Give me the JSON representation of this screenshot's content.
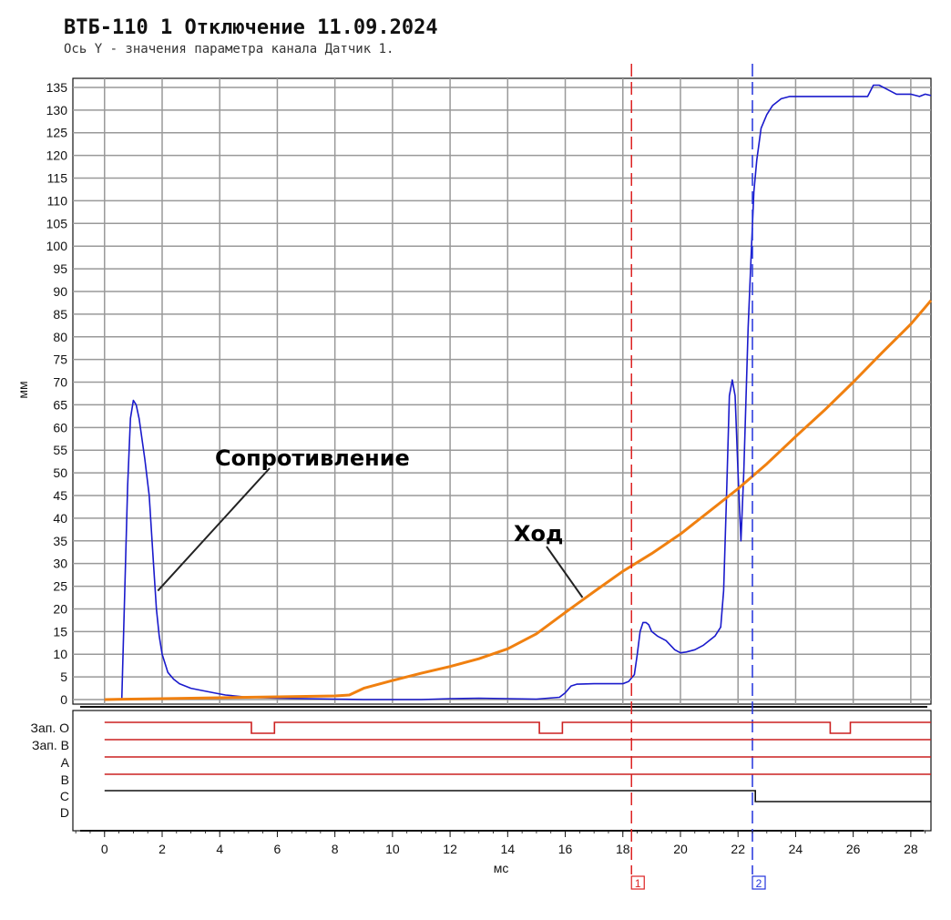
{
  "chart_data": {
    "type": "line",
    "title": "ВТБ-110 1 Отключение 11.09.2024",
    "subtitle": "Ось Y - значения параметра канала Датчик 1.",
    "xlabel": "мс",
    "ylabel": "мм",
    "xlim": [
      -1.1,
      28.7
    ],
    "ylim": [
      -1,
      137
    ],
    "x_ticks": [
      0,
      2,
      4,
      6,
      8,
      10,
      12,
      14,
      16,
      18,
      20,
      22,
      24,
      26,
      28
    ],
    "y_ticks": [
      0,
      5,
      10,
      15,
      20,
      25,
      30,
      35,
      40,
      45,
      50,
      55,
      60,
      65,
      70,
      75,
      80,
      85,
      90,
      95,
      100,
      105,
      110,
      115,
      120,
      125,
      130,
      135
    ],
    "grid": true,
    "colors": {
      "resistance": "#1a1acc",
      "travel": "#f08010",
      "marker1": "#dd2222",
      "marker2": "#2233dd",
      "digital_red": "#cc2020",
      "digital_black": "#111111"
    },
    "series": [
      {
        "name": "Сопротивление",
        "x": [
          0,
          0.6,
          0.8,
          0.9,
          1.0,
          1.1,
          1.2,
          1.4,
          1.55,
          1.7,
          1.8,
          1.9,
          2.0,
          2.2,
          2.4,
          2.6,
          3.0,
          3.4,
          3.8,
          4.2,
          5.0,
          6.0,
          7.0,
          8.0,
          9.0,
          10.0,
          11.0,
          12.0,
          13.0,
          14.0,
          15.0,
          15.8,
          16.0,
          16.2,
          16.4,
          17.0,
          17.5,
          18.0,
          18.2,
          18.4,
          18.5,
          18.6,
          18.7,
          18.8,
          18.9,
          19.0,
          19.2,
          19.5,
          19.8,
          20.0,
          20.2,
          20.5,
          20.8,
          21.2,
          21.4,
          21.5,
          21.6,
          21.7,
          21.8,
          21.9,
          22.0,
          22.1,
          22.2,
          22.35,
          22.45,
          22.55,
          22.65,
          22.8,
          23.0,
          23.2,
          23.5,
          23.8,
          24.0,
          24.5,
          25.0,
          26.0,
          26.5,
          26.7,
          26.9,
          27.2,
          27.5,
          28.0,
          28.3,
          28.5,
          28.7
        ],
        "values": [
          0,
          0,
          47,
          62,
          66,
          65,
          62,
          53,
          45,
          30,
          20,
          14,
          10,
          6,
          4.5,
          3.5,
          2.5,
          2,
          1.5,
          1,
          0.5,
          0.3,
          0.2,
          0.1,
          0,
          0,
          0,
          0.2,
          0.3,
          0.2,
          0.1,
          0.5,
          1.5,
          3,
          3.4,
          3.5,
          3.5,
          3.5,
          4,
          5.5,
          10,
          15,
          17,
          17,
          16.5,
          15,
          14,
          13,
          11,
          10.3,
          10.5,
          11,
          12,
          14,
          16,
          24,
          45,
          67,
          70.5,
          67,
          50,
          35,
          50,
          82,
          97,
          112,
          119,
          126,
          129,
          131,
          132.5,
          133,
          133,
          133,
          133,
          133,
          133,
          135.5,
          135.5,
          134.5,
          133.5,
          133.5,
          133,
          133.5,
          133.2
        ]
      },
      {
        "name": "Ход",
        "x": [
          0,
          2,
          4,
          6,
          7,
          8,
          8.5,
          9,
          10,
          11,
          12,
          13,
          14,
          15,
          16,
          17,
          18,
          19,
          20,
          21,
          22,
          23,
          24,
          25,
          26,
          27,
          28,
          28.7
        ],
        "values": [
          0,
          0.2,
          0.4,
          0.6,
          0.7,
          0.8,
          1,
          2.5,
          4.2,
          5.8,
          7.3,
          9,
          11.2,
          14.5,
          19.2,
          23.8,
          28.3,
          32.2,
          36.5,
          41.5,
          46.5,
          52,
          58,
          63.8,
          70,
          76.5,
          82.8,
          88
        ]
      }
    ],
    "annotations": [
      {
        "text": "Сопротивление",
        "points_to": {
          "x": 1.85,
          "y": 24
        }
      },
      {
        "text": "Ход",
        "points_to": {
          "x": 16.6,
          "y": 22.5
        }
      }
    ],
    "markers": [
      {
        "label": "1",
        "x": 18.3,
        "color": "#dd2222"
      },
      {
        "label": "2",
        "x": 22.5,
        "color": "#2233dd"
      }
    ],
    "digital_channels": [
      {
        "name": "Зап. О",
        "color": "#cc2020",
        "edges": [
          [
            0,
            1
          ],
          [
            5.1,
            0
          ],
          [
            5.9,
            1
          ],
          [
            15.1,
            0
          ],
          [
            15.9,
            1
          ],
          [
            25.2,
            0
          ],
          [
            25.9,
            1
          ]
        ]
      },
      {
        "name": "Зап. В",
        "color": "#cc2020",
        "edges": [
          [
            0,
            1
          ]
        ]
      },
      {
        "name": "A",
        "color": "#cc2020",
        "edges": [
          [
            0,
            1
          ]
        ]
      },
      {
        "name": "B",
        "color": "#cc2020",
        "edges": [
          [
            0,
            1
          ]
        ]
      },
      {
        "name": "C",
        "color": "#111111",
        "edges": [
          [
            0,
            1
          ],
          [
            22.6,
            0
          ]
        ]
      },
      {
        "name": "D",
        "color": "#111111",
        "edges": []
      }
    ]
  }
}
